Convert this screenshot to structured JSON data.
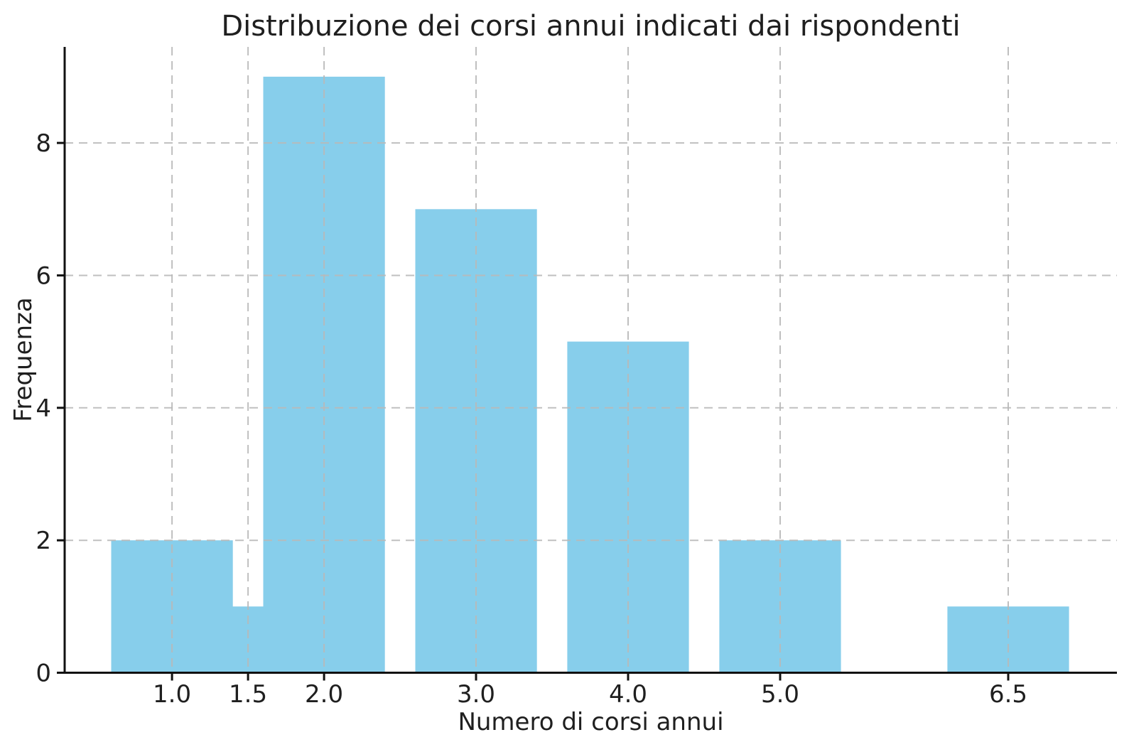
{
  "chart_data": {
    "type": "bar",
    "title": "Distribuzione dei corsi annui indicati dai rispondenti",
    "xlabel": "Numero di corsi annui",
    "ylabel": "Frequenza",
    "x": [
      1.0,
      1.5,
      2.0,
      3.0,
      4.0,
      5.0,
      6.5
    ],
    "values": [
      2,
      1,
      9,
      7,
      5,
      2,
      1
    ],
    "bar_width": 0.8,
    "bar_color": "#87CEEB",
    "xticks": [
      1.0,
      1.5,
      2.0,
      3.0,
      4.0,
      5.0,
      6.5
    ],
    "xtick_labels": [
      "1.0",
      "1.5",
      "2.0",
      "3.0",
      "4.0",
      "5.0",
      "6.5"
    ],
    "yticks": [
      0,
      2,
      4,
      6,
      8
    ],
    "ytick_labels": [
      "0",
      "2",
      "4",
      "6",
      "8"
    ],
    "xlim": [
      0.294,
      7.215
    ],
    "ylim": [
      0,
      9.45
    ],
    "grid": true,
    "grid_style": "dashed",
    "grid_on_top_of_bars": true,
    "grid_color": "#b9b9b9",
    "axis_color": "#111111",
    "text_color": "#1f1f1f",
    "background": "#ffffff"
  }
}
